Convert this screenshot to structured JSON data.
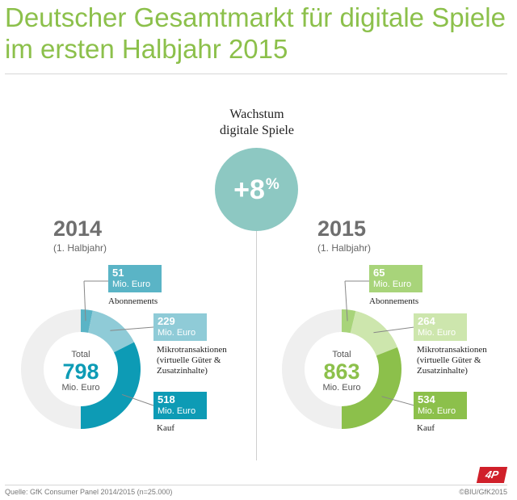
{
  "header": {
    "title_line1": "Deutscher Gesamtmarkt für digitale Spiele",
    "title_line2": "im ersten Halbjahr 2015"
  },
  "growth": {
    "label_line1": "Wachstum",
    "label_line2": "digitale Spiele",
    "value": "+8",
    "unit": "%"
  },
  "chart_data": [
    {
      "type": "pie",
      "title": "2014",
      "subtitle": "(1. Halbjahr)",
      "total_label": "Total",
      "total": 798,
      "total_unit": "Mio. Euro",
      "unit": "Mio. Euro",
      "slices": [
        {
          "label": "Abonnements",
          "label_lines": [
            "Abonnements"
          ],
          "value": 51,
          "color": "#5ab4c6"
        },
        {
          "label": "Mikrotransaktionen (virtuelle Güter & Zusatzinhalte)",
          "label_lines": [
            "Mikrotransaktionen",
            "(virtuelle Güter &",
            "Zusatzinhalte)"
          ],
          "value": 229,
          "color": "#8fcbd7"
        },
        {
          "label": "Kauf",
          "label_lines": [
            "Kauf"
          ],
          "value": 518,
          "color": "#0d9bb5"
        }
      ],
      "remainder_color": "#efefef"
    },
    {
      "type": "pie",
      "title": "2015",
      "subtitle": "(1. Halbjahr)",
      "total_label": "Total",
      "total": 863,
      "total_unit": "Mio. Euro",
      "unit": "Mio. Euro",
      "slices": [
        {
          "label": "Abonnements",
          "label_lines": [
            "Abonnements"
          ],
          "value": 65,
          "color": "#a8d47a"
        },
        {
          "label": "Mikrotransaktionen (virtuelle Güter & Zusatzinhalte)",
          "label_lines": [
            "Mikrotransaktionen",
            "(virtuelle Güter &",
            "Zusatzinhalte)"
          ],
          "value": 264,
          "color": "#cde6ad"
        },
        {
          "label": "Kauf",
          "label_lines": [
            "Kauf"
          ],
          "value": 534,
          "color": "#8cc04b"
        }
      ],
      "remainder_color": "#efefef"
    }
  ],
  "footer": {
    "source": "Quelle: GfK Consumer Panel 2014/2015 (n=25.000)",
    "copyright": "©BIU/GfK2015",
    "logo": "4P"
  }
}
